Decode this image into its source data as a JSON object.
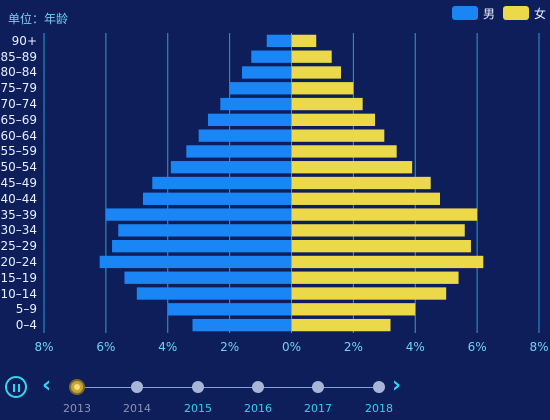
{
  "chart_data": {
    "type": "bar",
    "orientation": "horizontal-diverging",
    "unit_label": "单位：年龄",
    "categories": [
      "0–4",
      "5–9",
      "10–14",
      "15–19",
      "20–24",
      "25–29",
      "30–34",
      "35–39",
      "40–44",
      "45–49",
      "50–54",
      "55–59",
      "60–64",
      "65–69",
      "70–74",
      "75–79",
      "80–84",
      "85–89",
      "90+"
    ],
    "series": [
      {
        "name": "男",
        "color": "#1a86f5",
        "values": [
          3.2,
          4.0,
          5.0,
          5.4,
          6.2,
          5.8,
          5.6,
          6.0,
          4.8,
          4.5,
          3.9,
          3.4,
          3.0,
          2.7,
          2.3,
          2.0,
          1.6,
          1.3,
          0.8
        ]
      },
      {
        "name": "女",
        "color": "#ecd94a",
        "values": [
          3.2,
          4.0,
          5.0,
          5.4,
          6.2,
          5.8,
          5.6,
          6.0,
          4.8,
          4.5,
          3.9,
          3.4,
          3.0,
          2.7,
          2.3,
          2.0,
          1.6,
          1.3,
          0.8
        ]
      }
    ],
    "xlim": [
      -8,
      8
    ],
    "xticks": [
      "8%",
      "6%",
      "4%",
      "2%",
      "0%",
      "2%",
      "4%",
      "6%",
      "8%"
    ],
    "legend_position": "top-right",
    "grid": true
  },
  "timeline": {
    "years": [
      "2013",
      "2014",
      "2015",
      "2016",
      "2017",
      "2018"
    ],
    "current": "2013",
    "prev_symbol": "‹",
    "next_symbol": "›"
  }
}
